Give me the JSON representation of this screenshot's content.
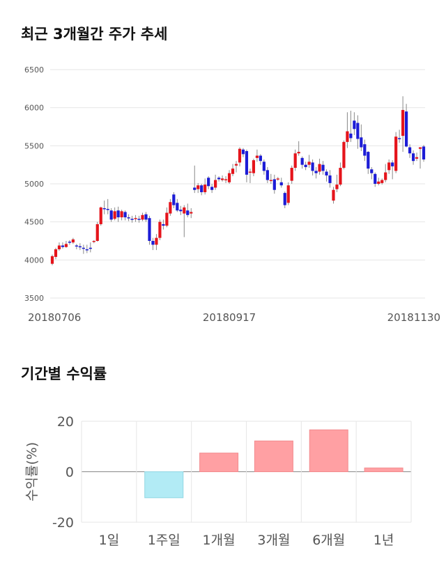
{
  "section1": {
    "title": "최근 3개월간 주가 추세"
  },
  "section2": {
    "title": "기간별 수익률"
  },
  "colors": {
    "up": "#e5141b",
    "down": "#1c1cd6",
    "wick": "#888888",
    "positive": "#ffa0a3",
    "negative": "#b2ebf5",
    "grid": "#e6e6e6"
  },
  "chart_data": [
    {
      "type": "candlestick",
      "title": "최근 3개월간 주가 추세",
      "ylim": [
        3500,
        6500
      ],
      "yticks": [
        "3500",
        "4000",
        "4500",
        "5000",
        "5500",
        "6000",
        "6500"
      ],
      "xtick_labels": [
        "20180706",
        "20180917",
        "20181130"
      ],
      "xtick_index": [
        0,
        51,
        103
      ],
      "candles": [
        [
          3950,
          4050,
          3930,
          4070
        ],
        [
          4040,
          4140,
          4010,
          4160
        ],
        [
          4140,
          4190,
          4120,
          4230
        ],
        [
          4190,
          4170,
          4150,
          4230
        ],
        [
          4170,
          4210,
          4160,
          4250
        ],
        [
          4240,
          4230,
          4200,
          4260
        ],
        [
          4230,
          4270,
          4210,
          4290
        ],
        [
          4190,
          4180,
          4140,
          4210
        ],
        [
          4180,
          4170,
          4130,
          4220
        ],
        [
          4160,
          4150,
          4080,
          4200
        ],
        [
          4140,
          4130,
          4090,
          4200
        ],
        [
          4160,
          4150,
          4100,
          4230
        ],
        [
          4240,
          4250,
          4220,
          4260
        ],
        [
          4250,
          4470,
          4240,
          4500
        ],
        [
          4470,
          4690,
          4450,
          4700
        ],
        [
          4680,
          4670,
          4600,
          4780
        ],
        [
          4670,
          4660,
          4600,
          4800
        ],
        [
          4650,
          4530,
          4500,
          4680
        ],
        [
          4540,
          4640,
          4520,
          4690
        ],
        [
          4650,
          4560,
          4500,
          4700
        ],
        [
          4560,
          4640,
          4520,
          4660
        ],
        [
          4630,
          4560,
          4520,
          4650
        ],
        [
          4560,
          4550,
          4510,
          4600
        ],
        [
          4540,
          4530,
          4490,
          4580
        ],
        [
          4540,
          4550,
          4500,
          4590
        ],
        [
          4540,
          4530,
          4490,
          4580
        ],
        [
          4530,
          4590,
          4510,
          4620
        ],
        [
          4600,
          4530,
          4500,
          4630
        ],
        [
          4550,
          4250,
          4200,
          4580
        ],
        [
          4250,
          4200,
          4130,
          4290
        ],
        [
          4200,
          4290,
          4130,
          4340
        ],
        [
          4290,
          4500,
          4260,
          4530
        ],
        [
          4470,
          4450,
          4400,
          4530
        ],
        [
          4450,
          4620,
          4430,
          4690
        ],
        [
          4610,
          4760,
          4580,
          4800
        ],
        [
          4860,
          4720,
          4680,
          4890
        ],
        [
          4750,
          4650,
          4630,
          4800
        ],
        [
          4660,
          4640,
          4590,
          4710
        ],
        [
          4610,
          4690,
          4300,
          4720
        ],
        [
          4650,
          4590,
          4560,
          4740
        ],
        [
          4610,
          4630,
          4550,
          4680
        ],
        [
          4950,
          4920,
          4880,
          5240
        ],
        [
          4930,
          4980,
          4880,
          5010
        ],
        [
          4980,
          4890,
          4850,
          5000
        ],
        [
          4890,
          4990,
          4860,
          5070
        ],
        [
          5080,
          4970,
          4930,
          5100
        ],
        [
          4960,
          4920,
          4880,
          5000
        ],
        [
          4950,
          5050,
          4920,
          5120
        ],
        [
          5080,
          5060,
          5030,
          5100
        ],
        [
          5050,
          5070,
          5030,
          5110
        ],
        [
          5050,
          5060,
          5010,
          5100
        ],
        [
          5020,
          5140,
          5000,
          5180
        ],
        [
          5130,
          5200,
          5100,
          5260
        ],
        [
          5240,
          5260,
          5150,
          5300
        ],
        [
          5280,
          5460,
          5230,
          5480
        ],
        [
          5450,
          5390,
          5350,
          5470
        ],
        [
          5430,
          5120,
          5020,
          5450
        ],
        [
          5150,
          5160,
          5010,
          5200
        ],
        [
          5140,
          5310,
          5100,
          5330
        ],
        [
          5340,
          5370,
          5290,
          5450
        ],
        [
          5370,
          5300,
          5250,
          5390
        ],
        [
          5290,
          5170,
          5120,
          5320
        ],
        [
          5180,
          5050,
          5010,
          5220
        ],
        [
          5050,
          5050,
          5000,
          5130
        ],
        [
          5060,
          4920,
          4870,
          5120
        ],
        [
          5060,
          5070,
          5040,
          5090
        ],
        [
          5020,
          4980,
          4950,
          5080
        ],
        [
          4880,
          4720,
          4680,
          4900
        ],
        [
          4750,
          4980,
          4720,
          5020
        ],
        [
          5040,
          5210,
          5000,
          5240
        ],
        [
          5210,
          5400,
          5170,
          5450
        ],
        [
          5400,
          5420,
          5370,
          5560
        ],
        [
          5340,
          5250,
          5200,
          5360
        ],
        [
          5250,
          5220,
          5180,
          5290
        ],
        [
          5250,
          5290,
          5210,
          5380
        ],
        [
          5280,
          5170,
          5110,
          5320
        ],
        [
          5170,
          5140,
          5070,
          5220
        ],
        [
          5160,
          5260,
          5120,
          5330
        ],
        [
          5250,
          5170,
          5120,
          5300
        ],
        [
          5160,
          5110,
          5030,
          5190
        ],
        [
          5110,
          5010,
          4950,
          5180
        ],
        [
          4780,
          4920,
          4740,
          4960
        ],
        [
          4930,
          4990,
          4890,
          5120
        ],
        [
          4990,
          5210,
          4970,
          5280
        ],
        [
          5210,
          5550,
          5190,
          5570
        ],
        [
          5550,
          5690,
          5470,
          5940
        ],
        [
          5660,
          5600,
          5550,
          5960
        ],
        [
          5830,
          5720,
          5640,
          5940
        ],
        [
          5800,
          5590,
          5460,
          5900
        ],
        [
          5610,
          5480,
          5430,
          5780
        ],
        [
          5520,
          5370,
          5300,
          5580
        ],
        [
          5420,
          5200,
          5130,
          5430
        ],
        [
          5190,
          5140,
          5060,
          5220
        ],
        [
          5130,
          5000,
          4960,
          5150
        ],
        [
          5000,
          5030,
          4980,
          5080
        ],
        [
          5010,
          5050,
          4990,
          5070
        ],
        [
          5050,
          5150,
          5020,
          5260
        ],
        [
          5180,
          5280,
          5130,
          5320
        ],
        [
          5280,
          5230,
          5060,
          5310
        ],
        [
          5170,
          5620,
          5140,
          5680
        ],
        [
          5600,
          5590,
          5540,
          5710
        ],
        [
          5630,
          5970,
          5420,
          6150
        ],
        [
          5950,
          5490,
          5480,
          6050
        ],
        [
          5480,
          5400,
          5340,
          5520
        ],
        [
          5400,
          5300,
          5250,
          5440
        ],
        [
          5330,
          5350,
          5300,
          5410
        ],
        [
          5460,
          5480,
          5200,
          5480
        ],
        [
          5490,
          5320,
          5290,
          5510
        ]
      ]
    },
    {
      "type": "bar",
      "title": "기간별 수익률",
      "ylabel": "수익률(%)",
      "ylim": [
        -20,
        20
      ],
      "yticks": [
        "-20",
        "0",
        "20"
      ],
      "categories": [
        "1일",
        "1주일",
        "1개월",
        "3개월",
        "6개월",
        "1년"
      ],
      "values": [
        0,
        -10.3,
        7.4,
        12.2,
        16.6,
        1.5
      ]
    }
  ]
}
